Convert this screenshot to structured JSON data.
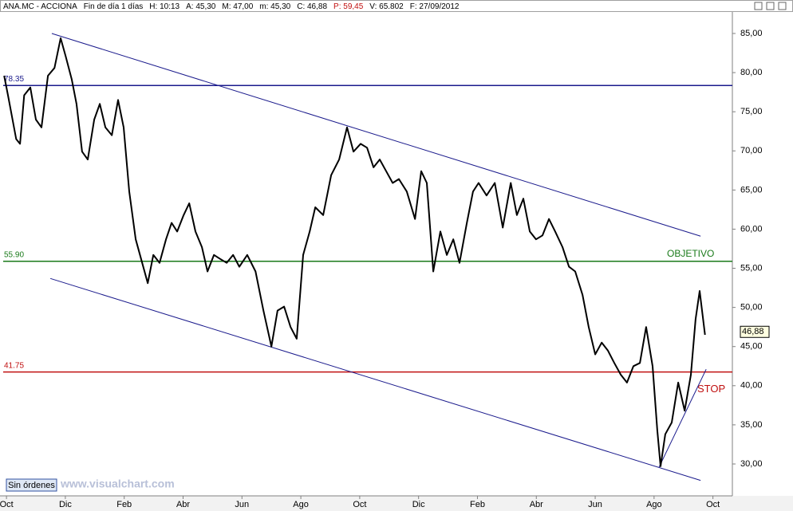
{
  "chart_data": {
    "type": "line",
    "header": [
      "ANA.MC - ACCIONA",
      "Fin de día 1 días",
      "H: 10:13",
      "A: 45,30",
      "M: 47,00",
      "m: 45,30",
      "C: 46,88",
      "P: 59,45",
      "V: 65.802",
      "F: 27/09/2012"
    ],
    "header_highlight": 7,
    "x": [
      -0.08,
      0.05,
      0.33,
      0.46,
      0.6,
      0.81,
      1.0,
      1.19,
      1.41,
      1.63,
      1.84,
      2.01,
      2.22,
      2.38,
      2.57,
      2.76,
      2.98,
      3.17,
      3.36,
      3.58,
      3.79,
      3.98,
      4.17,
      4.39,
      4.61,
      4.8,
      4.99,
      5.2,
      5.42,
      5.61,
      5.8,
      6.02,
      6.21,
      6.42,
      6.64,
      6.83,
      7.05,
      7.26,
      7.48,
      7.7,
      7.91,
      8.18,
      8.46,
      8.73,
      9.0,
      9.21,
      9.43,
      9.65,
      9.86,
      10.08,
      10.3,
      10.49,
      10.76,
      11.03,
      11.3,
      11.57,
      11.79,
      12.03,
      12.25,
      12.47,
      12.68,
      12.9,
      13.12,
      13.33,
      13.6,
      13.88,
      14.09,
      14.28,
      14.5,
      14.74,
      14.96,
      15.18,
      15.39,
      15.64,
      15.85,
      16.04,
      16.31,
      16.59,
      16.86,
      17.13,
      17.34,
      17.56,
      17.78,
      17.99,
      18.21,
      18.43,
      18.64,
      18.89,
      19.11,
      19.32,
      19.57,
      19.78,
      20.0,
      20.22,
      20.43,
      20.65,
      20.87,
      21.08,
      21.3,
      21.52,
      21.73,
      21.95,
      22.11,
      22.22,
      22.38,
      22.6,
      22.82,
      23.04,
      23.25,
      23.41,
      23.55,
      23.73
    ],
    "series": [
      {
        "name": "ANA.MC",
        "color": "#000000",
        "values": [
          79.6,
          77.1,
          71.5,
          70.9,
          77.1,
          78.1,
          74.0,
          73.0,
          79.6,
          80.6,
          84.4,
          82.1,
          79.1,
          76.0,
          69.9,
          68.9,
          74.0,
          76.0,
          73.0,
          72.0,
          76.5,
          73.0,
          64.8,
          58.7,
          55.7,
          53.1,
          56.7,
          55.7,
          58.7,
          60.8,
          59.7,
          61.8,
          63.3,
          59.7,
          57.7,
          54.6,
          56.7,
          56.2,
          55.7,
          56.7,
          55.2,
          56.7,
          54.6,
          49.6,
          45.0,
          49.6,
          50.1,
          47.5,
          46.0,
          56.7,
          59.7,
          62.8,
          61.8,
          66.9,
          68.9,
          73.0,
          69.9,
          70.9,
          70.4,
          67.9,
          68.9,
          67.4,
          65.9,
          66.4,
          64.8,
          61.3,
          67.4,
          65.9,
          54.6,
          59.7,
          56.7,
          58.7,
          55.7,
          60.8,
          64.8,
          65.9,
          64.3,
          65.9,
          60.2,
          65.9,
          61.8,
          63.9,
          59.7,
          58.7,
          59.2,
          61.3,
          59.7,
          57.7,
          55.2,
          54.6,
          51.6,
          47.5,
          44.0,
          45.5,
          44.5,
          42.9,
          41.4,
          40.4,
          42.5,
          42.9,
          47.5,
          42.5,
          34.3,
          29.7,
          33.8,
          35.3,
          40.4,
          36.8,
          41.4,
          48.5,
          52.1,
          46.5
        ]
      }
    ],
    "last_label": "46,88",
    "last_value": 46.88,
    "levels": [
      {
        "value": 78.35,
        "label": "78.35",
        "color": "#1a1a8c"
      },
      {
        "value": 55.9,
        "label": "55.90",
        "text": "OBJETIVO",
        "color": "#1a7a1a"
      },
      {
        "value": 41.75,
        "label": "41.75",
        "text": "STOP",
        "color": "#c01010"
      }
    ],
    "trendlines": [
      {
        "x": [
          1.54,
          23.58
        ],
        "y": [
          85.0,
          59.1
        ],
        "color": "#1a1a8c"
      },
      {
        "x": [
          1.49,
          23.58
        ],
        "y": [
          53.7,
          27.9
        ],
        "color": "#1a1a8c"
      },
      {
        "x": [
          22.17,
          23.77
        ],
        "y": [
          29.6,
          42.1
        ],
        "color": "#1a1a8c"
      }
    ],
    "xlim": [
      -0.22,
      24.66
    ],
    "xticks": [
      {
        "value": 0,
        "label": "Oct"
      },
      {
        "value": 2,
        "label": "Dic"
      },
      {
        "value": 4,
        "label": "Feb"
      },
      {
        "value": 6,
        "label": "Abr"
      },
      {
        "value": 8,
        "label": "Jun"
      },
      {
        "value": 10,
        "label": "Ago"
      },
      {
        "value": 12,
        "label": "Oct"
      },
      {
        "value": 14,
        "label": "Dic"
      },
      {
        "value": 16,
        "label": "Feb"
      },
      {
        "value": 18,
        "label": "Abr"
      },
      {
        "value": 20,
        "label": "Jun"
      },
      {
        "value": 22,
        "label": "Ago"
      },
      {
        "value": 24,
        "label": "Oct"
      }
    ],
    "ylim": [
      26.13,
      87.85
    ],
    "yticks": [
      {
        "value": 30,
        "label": "30,00"
      },
      {
        "value": 35,
        "label": "35,00"
      },
      {
        "value": 40,
        "label": "40,00"
      },
      {
        "value": 45,
        "label": "45,00"
      },
      {
        "value": 50,
        "label": "50,00"
      },
      {
        "value": 55,
        "label": "55,00"
      },
      {
        "value": 60,
        "label": "60,00"
      },
      {
        "value": 65,
        "label": "65,00"
      },
      {
        "value": 70,
        "label": "70,00"
      },
      {
        "value": 75,
        "label": "75,00"
      },
      {
        "value": 80,
        "label": "80,00"
      },
      {
        "value": 85,
        "label": "85,00"
      }
    ],
    "orders_label": "Sin órdenes",
    "watermark": "www.visualchart.com"
  }
}
